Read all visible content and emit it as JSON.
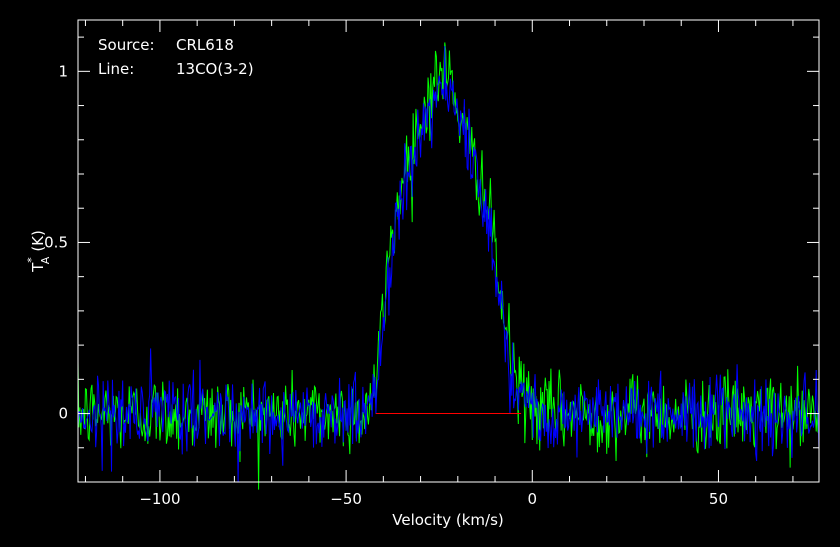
{
  "annotations": {
    "source_key": "Source:",
    "source_value": "CRL618",
    "line_key": "Line:",
    "line_value": "13CO(3-2)"
  },
  "colors": {
    "background": "#000000",
    "frame": "#ffffff",
    "series_green": "#00ff00",
    "series_blue": "#0000ff",
    "baseline": "#ff0000"
  },
  "chart_data": {
    "type": "line",
    "title": "",
    "xlabel": "Velocity (km/s)",
    "ylabel": "T*A (K)",
    "ylabel_main": "T",
    "ylabel_sub": "A",
    "ylabel_sup": "*",
    "ylabel_unit": "(K)",
    "xlim": [
      -122,
      77
    ],
    "ylim": [
      -0.2,
      1.15
    ],
    "xticks": [
      -100,
      -50,
      0,
      50
    ],
    "xtick_labels": [
      "−100",
      "−50",
      "0",
      "50"
    ],
    "yticks": [
      0,
      0.5,
      1
    ],
    "ytick_labels": [
      "0",
      "0.5",
      "1"
    ],
    "grid": false,
    "legend": "none",
    "noise_rms": 0.055,
    "baseline_segment": {
      "x": [
        -42,
        -3
      ],
      "y": 0
    },
    "series": [
      {
        "color": "#00ff00",
        "x": [
          -122,
          -45,
          -42,
          -40,
          -38,
          -36,
          -34,
          -32,
          -30,
          -28,
          -26,
          -24,
          -22,
          -20,
          -18,
          -16,
          -14,
          -12,
          -10,
          -8,
          -6,
          -4,
          -2,
          0,
          5,
          77
        ],
        "y": [
          0,
          0,
          0.08,
          0.3,
          0.5,
          0.62,
          0.72,
          0.8,
          0.85,
          0.92,
          0.97,
          1.0,
          0.98,
          0.9,
          0.8,
          0.75,
          0.7,
          0.6,
          0.48,
          0.3,
          0.18,
          0.08,
          0.05,
          0.02,
          0,
          0
        ]
      },
      {
        "color": "#0000ff",
        "x": [
          -122,
          -45,
          -42,
          -40,
          -38,
          -36,
          -34,
          -32,
          -30,
          -28,
          -26,
          -24,
          -22,
          -20,
          -18,
          -16,
          -14,
          -12,
          -10,
          -8,
          -6,
          -4,
          -2,
          0,
          5,
          77
        ],
        "y": [
          0,
          0,
          0.06,
          0.25,
          0.46,
          0.6,
          0.7,
          0.78,
          0.83,
          0.88,
          0.93,
          0.95,
          0.94,
          0.87,
          0.78,
          0.72,
          0.66,
          0.57,
          0.46,
          0.28,
          0.16,
          0.07,
          0.04,
          0.02,
          0,
          0
        ]
      }
    ]
  }
}
